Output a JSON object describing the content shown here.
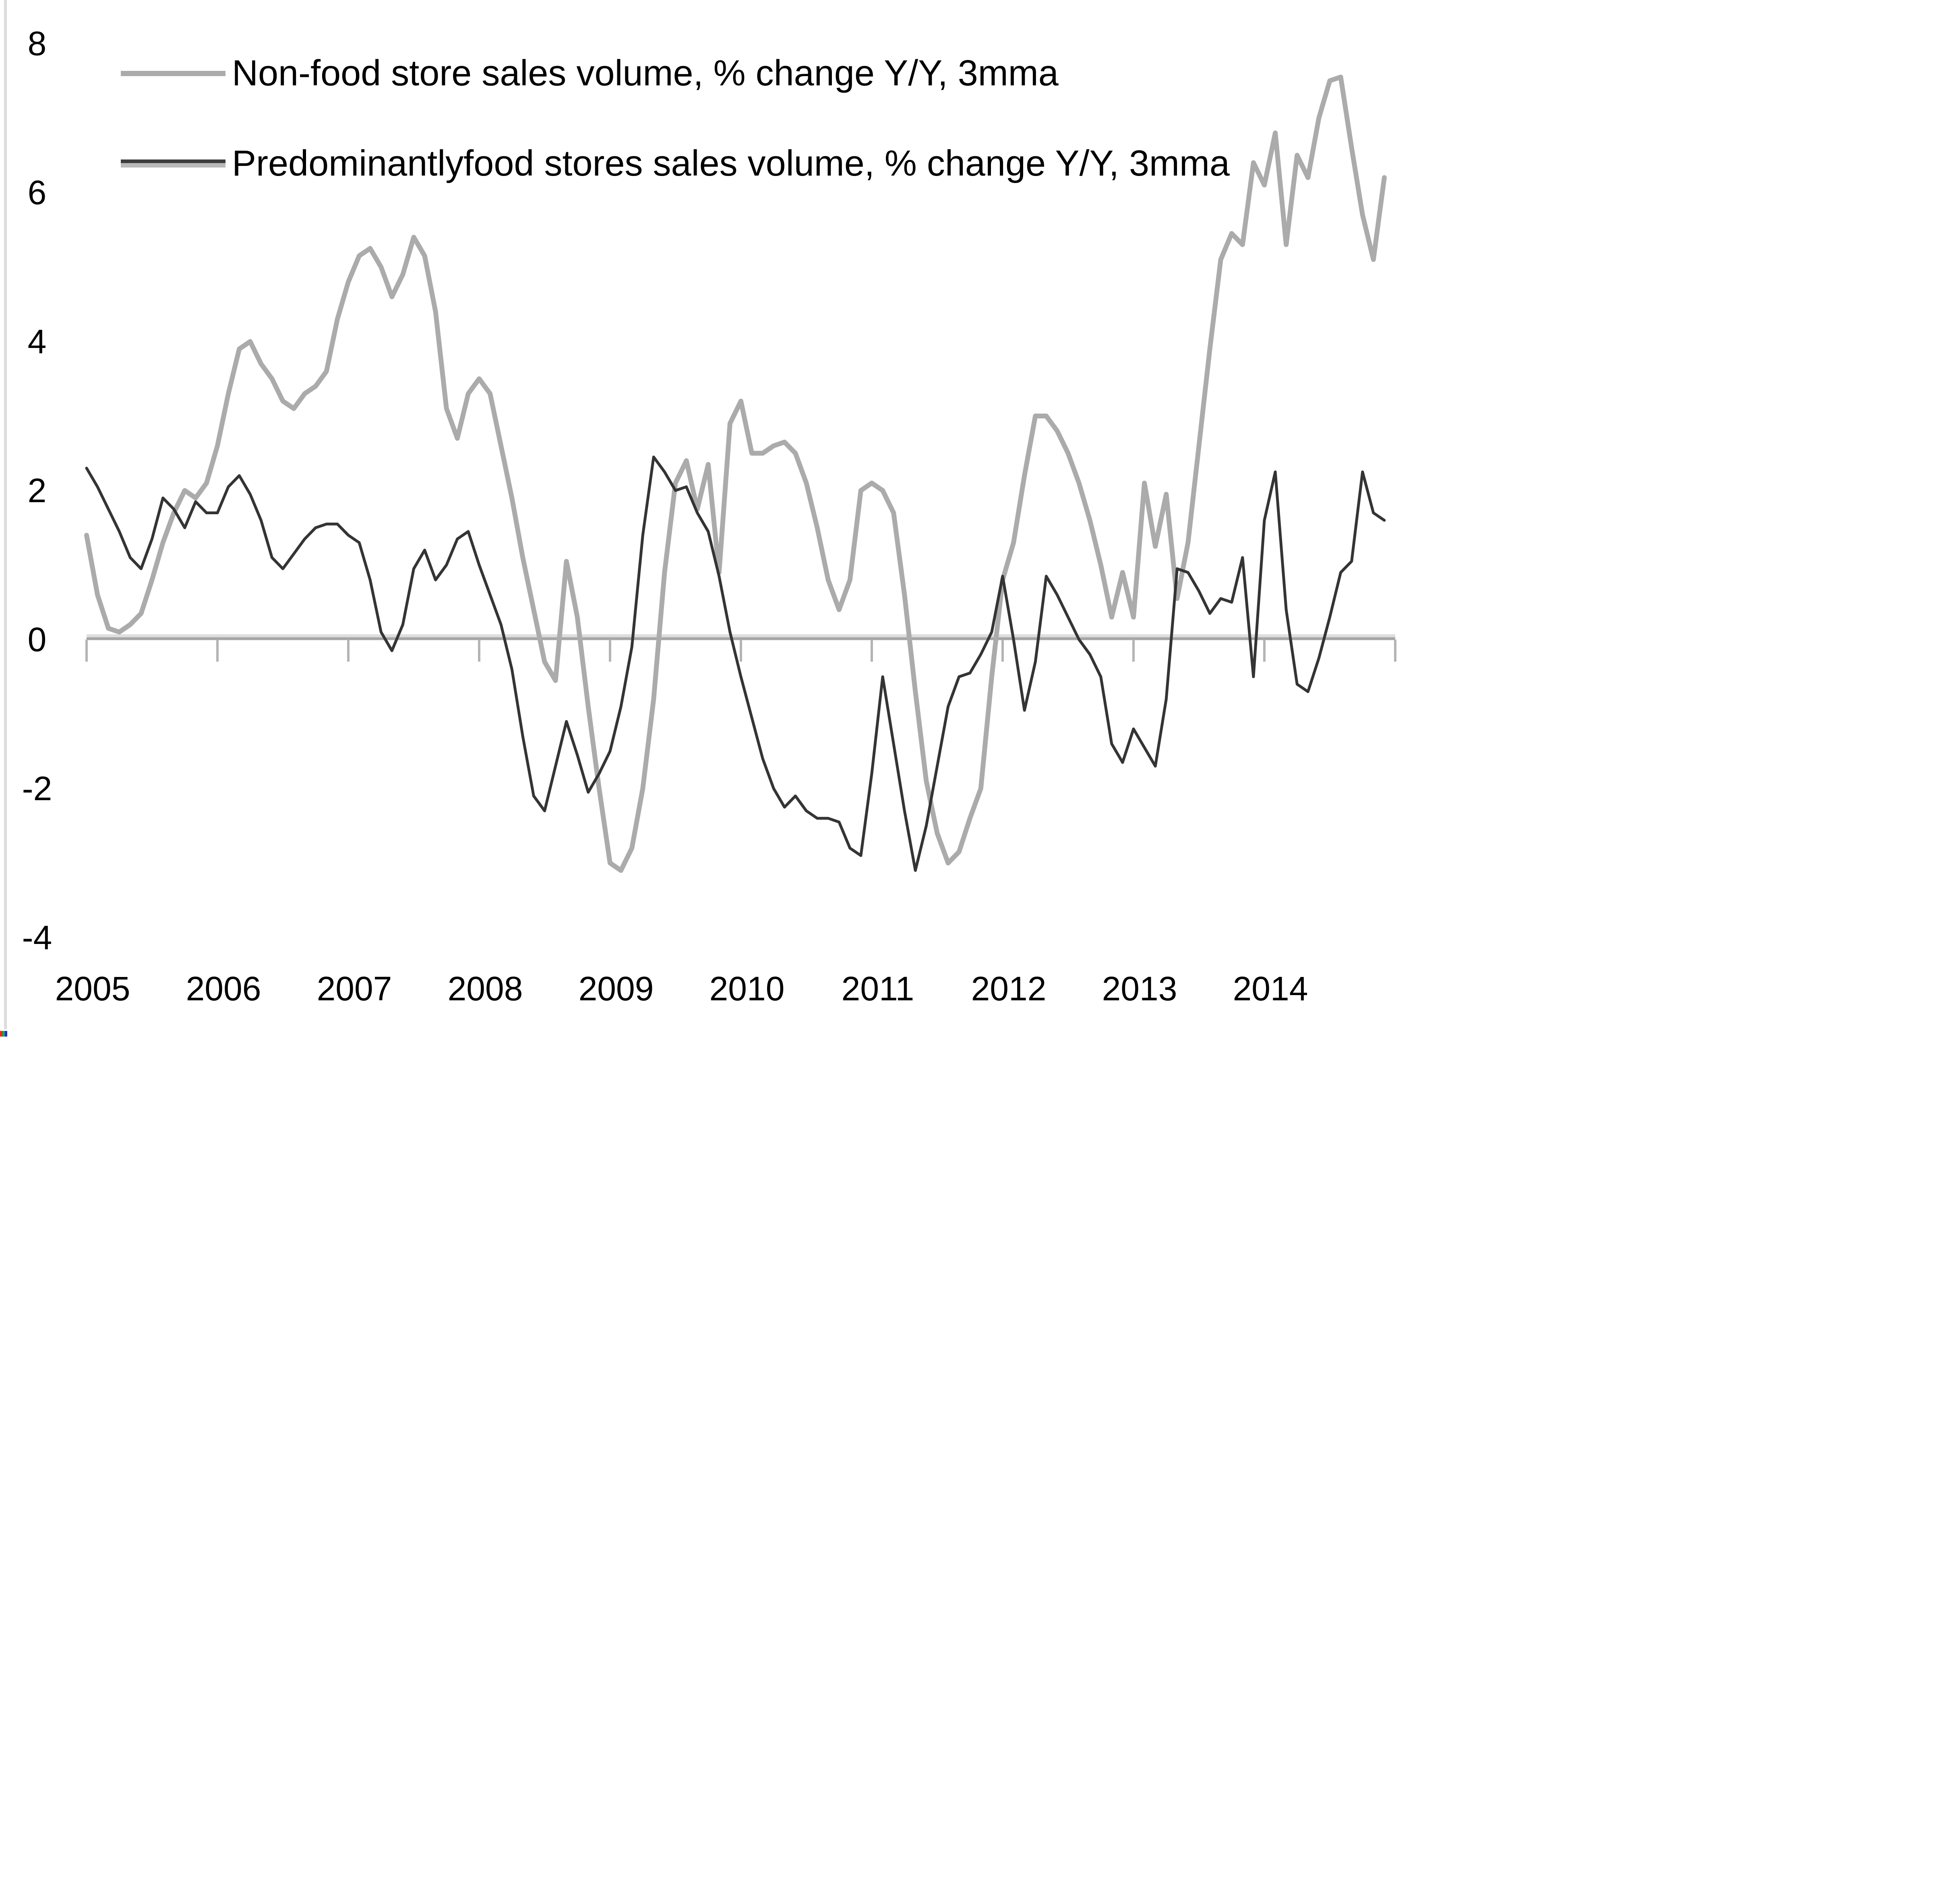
{
  "chart_data": {
    "type": "line",
    "title": "",
    "x_labels": [
      "2005",
      "2006",
      "2007",
      "2008",
      "2009",
      "2010",
      "2011",
      "2012",
      "2013",
      "2014"
    ],
    "x_start": "2005-01",
    "frequency": "monthly",
    "ylim": [
      -4,
      8
    ],
    "y_ticks": [
      "8",
      "6",
      "4",
      "2",
      "0",
      "-2",
      "-4"
    ],
    "grid": "zero-line-only",
    "legend_position": "top-left",
    "axis_colors": {
      "zero_line": "#a6a6a6",
      "zero_line_top": "#dedede",
      "year_tick": "#b4b4b4",
      "text": "#000000"
    },
    "series": [
      {
        "name": "Non-food store sales volume, % change Y/Y, 3mma",
        "color": "#ababab",
        "stroke_width": 12,
        "values": [
          1.4,
          0.6,
          0.15,
          0.1,
          0.2,
          0.35,
          0.8,
          1.3,
          1.7,
          2.0,
          1.9,
          2.1,
          2.6,
          3.3,
          3.9,
          4.0,
          3.7,
          3.5,
          3.2,
          3.1,
          3.3,
          3.4,
          3.6,
          4.3,
          4.8,
          5.15,
          5.25,
          5.0,
          4.6,
          4.9,
          5.4,
          5.15,
          4.4,
          3.1,
          2.7,
          3.3,
          3.5,
          3.3,
          2.6,
          1.9,
          1.1,
          0.4,
          -0.3,
          -0.55,
          1.05,
          0.3,
          -0.9,
          -2.0,
          -3.0,
          -3.1,
          -2.8,
          -2.0,
          -0.8,
          0.9,
          2.1,
          2.4,
          1.75,
          2.35,
          0.9,
          2.9,
          3.2,
          2.5,
          2.5,
          2.6,
          2.65,
          2.5,
          2.1,
          1.5,
          0.8,
          0.4,
          0.8,
          2.0,
          2.1,
          2.0,
          1.7,
          0.6,
          -0.7,
          -1.9,
          -2.6,
          -3.0,
          -2.85,
          -2.4,
          -2.0,
          -0.5,
          0.8,
          1.3,
          2.2,
          3.0,
          3.0,
          2.8,
          2.5,
          2.1,
          1.6,
          1.0,
          0.3,
          0.9,
          0.3,
          2.1,
          1.25,
          1.95,
          0.55,
          1.3,
          2.6,
          3.9,
          5.1,
          5.45,
          5.3,
          6.4,
          6.1,
          6.8,
          5.3,
          6.5,
          6.2,
          7.0,
          7.5,
          7.55,
          6.6,
          5.7,
          5.1,
          6.2
        ]
      },
      {
        "name": "Predominantlyfood stores sales volume, % change Y/Y, 3mma",
        "color": "#343434",
        "stroke_width": 7,
        "values": [
          2.3,
          2.05,
          1.75,
          1.45,
          1.1,
          0.95,
          1.35,
          1.9,
          1.75,
          1.5,
          1.85,
          1.7,
          1.7,
          2.05,
          2.2,
          1.95,
          1.6,
          1.1,
          0.95,
          1.15,
          1.35,
          1.5,
          1.55,
          1.55,
          1.4,
          1.3,
          0.8,
          0.1,
          -0.15,
          0.2,
          0.95,
          1.2,
          0.8,
          1.0,
          1.35,
          1.45,
          1.0,
          0.6,
          0.2,
          -0.4,
          -1.3,
          -2.1,
          -2.3,
          -1.7,
          -1.1,
          -1.55,
          -2.05,
          -1.8,
          -1.5,
          -0.9,
          -0.1,
          1.4,
          2.45,
          2.25,
          2.0,
          2.05,
          1.7,
          1.45,
          0.85,
          0.1,
          -0.5,
          -1.05,
          -1.6,
          -2.0,
          -2.25,
          -2.1,
          -2.3,
          -2.4,
          -2.4,
          -2.45,
          -2.8,
          -2.9,
          -1.8,
          -0.5,
          -1.4,
          -2.3,
          -3.1,
          -2.5,
          -1.7,
          -0.9,
          -0.5,
          -0.45,
          -0.2,
          0.1,
          0.85,
          0.0,
          -0.95,
          -0.3,
          0.85,
          0.6,
          0.3,
          0.0,
          -0.2,
          -0.5,
          -1.4,
          -1.65,
          -1.2,
          -1.45,
          -1.7,
          -0.8,
          0.95,
          0.9,
          0.65,
          0.35,
          0.55,
          0.5,
          1.1,
          -0.5,
          1.6,
          2.25,
          0.4,
          -0.6,
          -0.7,
          -0.25,
          0.3,
          0.9,
          1.05,
          2.25,
          1.7,
          1.6
        ]
      }
    ]
  },
  "legend_swatch_colors": {
    "nonfood": "#ababab",
    "food_core": "#3d3d3d",
    "food_halo": "#b9b9b9"
  },
  "artifact_colors": [
    "#ff2222",
    "#00bb22",
    "#2222ff"
  ]
}
